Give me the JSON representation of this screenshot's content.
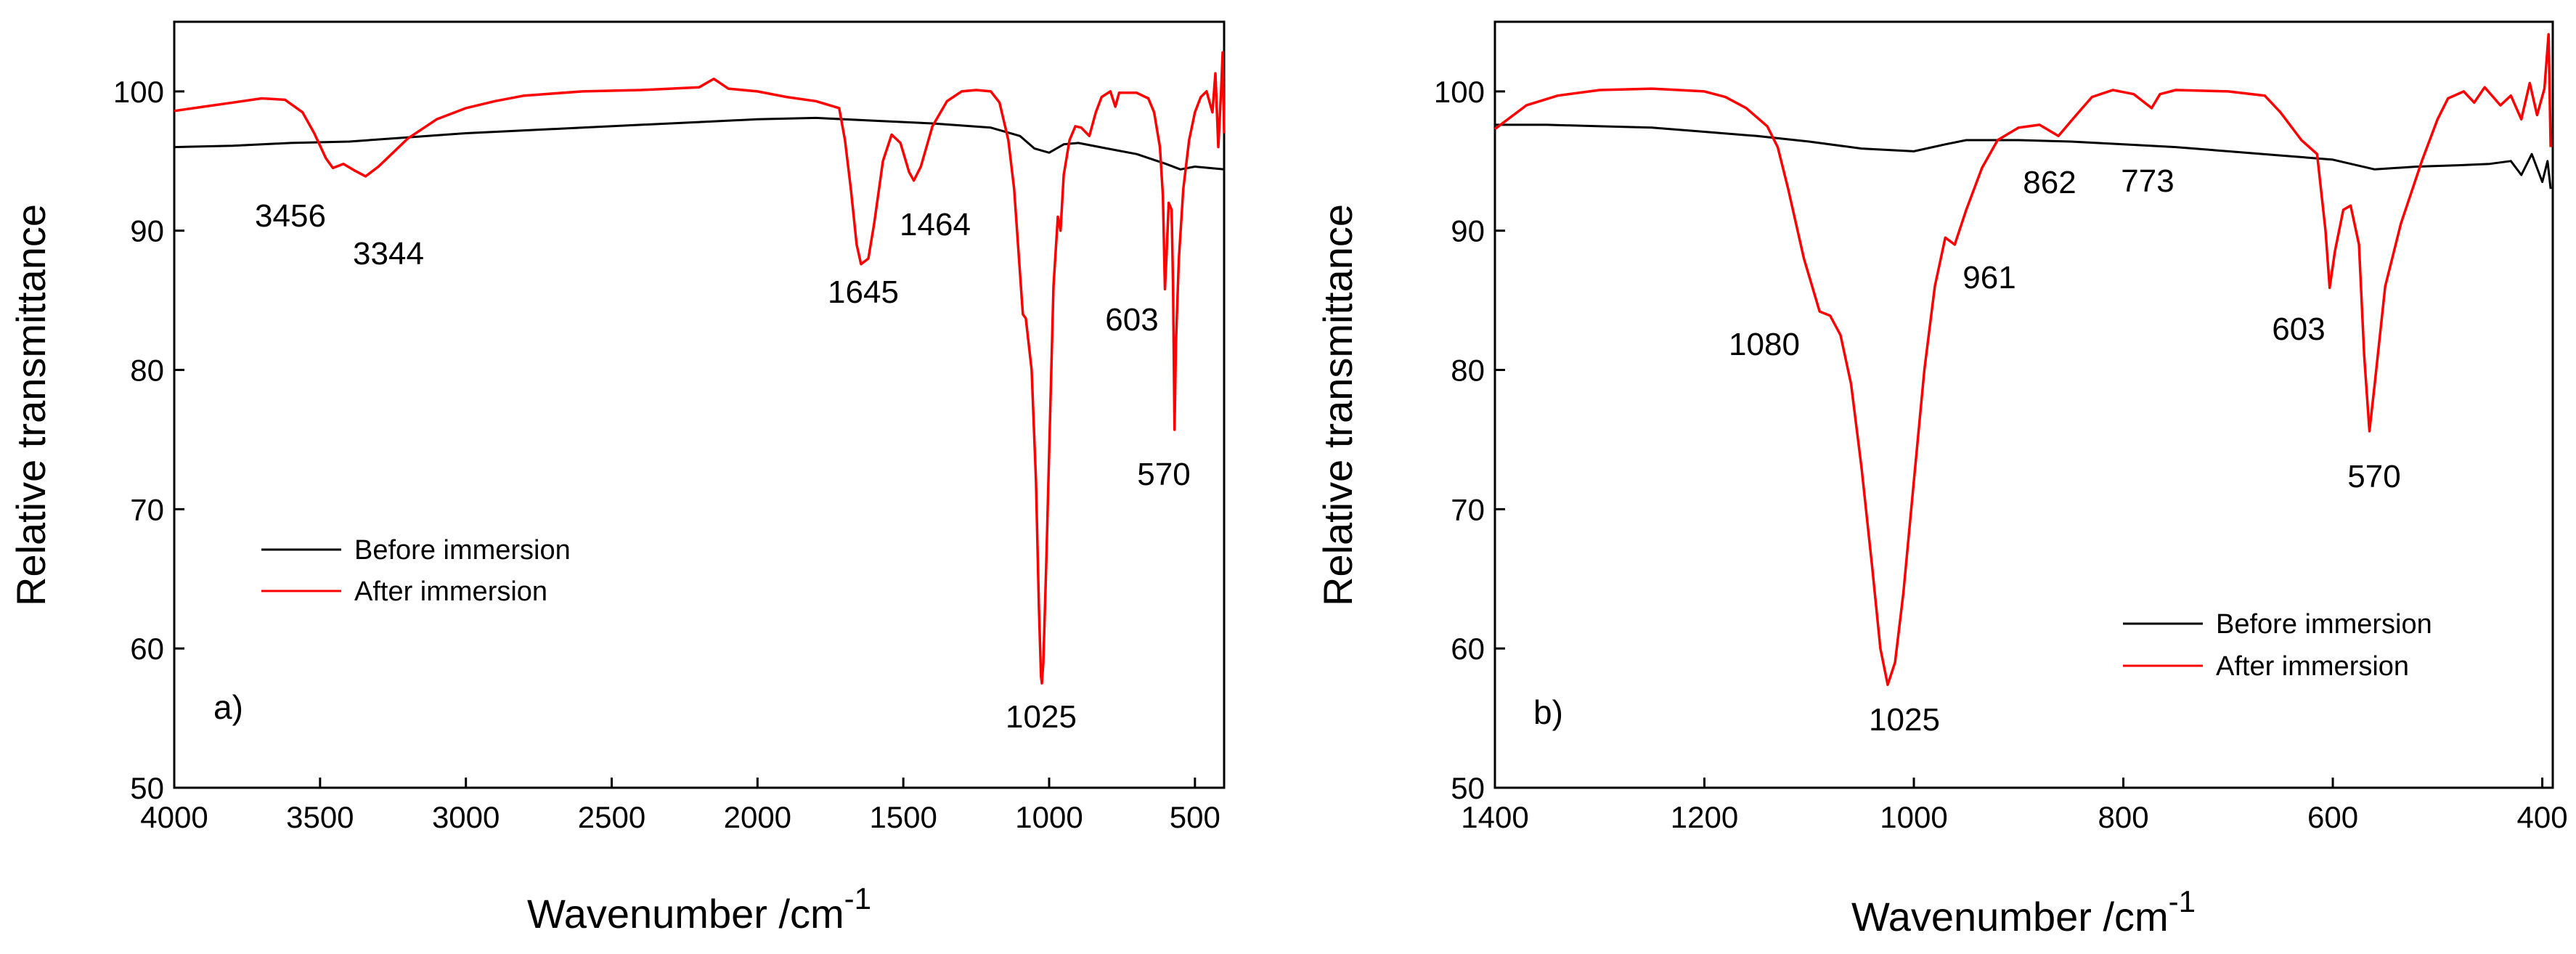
{
  "chart_data": [
    {
      "type": "line",
      "panel_label": "a)",
      "xlabel": "Wavenumber /cm",
      "xlabel_sup": "-1",
      "ylabel": "Relative transmittance",
      "xlim": [
        4000,
        400
      ],
      "ylim": [
        50,
        105
      ],
      "xticks": [
        4000,
        3500,
        3000,
        2500,
        2000,
        1500,
        1000,
        500
      ],
      "yticks": [
        50,
        60,
        70,
        80,
        90,
        100
      ],
      "legend_position": "lower-left",
      "series": [
        {
          "name": "Before immersion",
          "color": "#000000",
          "points": [
            [
              4000,
              96
            ],
            [
              3800,
              96.1
            ],
            [
              3600,
              96.3
            ],
            [
              3400,
              96.4
            ],
            [
              3200,
              96.7
            ],
            [
              3000,
              97
            ],
            [
              2800,
              97.2
            ],
            [
              2600,
              97.4
            ],
            [
              2400,
              97.6
            ],
            [
              2200,
              97.8
            ],
            [
              2000,
              98
            ],
            [
              1800,
              98.1
            ],
            [
              1600,
              97.9
            ],
            [
              1400,
              97.7
            ],
            [
              1200,
              97.4
            ],
            [
              1100,
              96.8
            ],
            [
              1050,
              95.9
            ],
            [
              1000,
              95.6
            ],
            [
              950,
              96.2
            ],
            [
              900,
              96.3
            ],
            [
              800,
              95.9
            ],
            [
              700,
              95.5
            ],
            [
              600,
              94.8
            ],
            [
              550,
              94.4
            ],
            [
              500,
              94.6
            ],
            [
              450,
              94.5
            ],
            [
              400,
              94.4
            ]
          ]
        },
        {
          "name": "After immersion",
          "color": "#ff0000",
          "points": [
            [
              4000,
              98.6
            ],
            [
              3900,
              98.9
            ],
            [
              3800,
              99.2
            ],
            [
              3700,
              99.5
            ],
            [
              3620,
              99.4
            ],
            [
              3560,
              98.5
            ],
            [
              3520,
              97
            ],
            [
              3480,
              95.2
            ],
            [
              3456,
              94.5
            ],
            [
              3420,
              94.8
            ],
            [
              3380,
              94.3
            ],
            [
              3344,
              93.9
            ],
            [
              3300,
              94.6
            ],
            [
              3250,
              95.6
            ],
            [
              3200,
              96.6
            ],
            [
              3100,
              98
            ],
            [
              3000,
              98.8
            ],
            [
              2900,
              99.3
            ],
            [
              2800,
              99.7
            ],
            [
              2600,
              100
            ],
            [
              2400,
              100.1
            ],
            [
              2200,
              100.3
            ],
            [
              2150,
              100.9
            ],
            [
              2100,
              100.2
            ],
            [
              2000,
              100
            ],
            [
              1900,
              99.6
            ],
            [
              1800,
              99.3
            ],
            [
              1720,
              98.8
            ],
            [
              1700,
              96.5
            ],
            [
              1680,
              93
            ],
            [
              1660,
              89
            ],
            [
              1645,
              87.6
            ],
            [
              1620,
              88
            ],
            [
              1600,
              90.5
            ],
            [
              1570,
              95
            ],
            [
              1540,
              96.9
            ],
            [
              1510,
              96.3
            ],
            [
              1480,
              94.2
            ],
            [
              1464,
              93.6
            ],
            [
              1440,
              94.6
            ],
            [
              1400,
              97.5
            ],
            [
              1350,
              99.3
            ],
            [
              1300,
              100
            ],
            [
              1250,
              100.1
            ],
            [
              1200,
              100
            ],
            [
              1170,
              99.2
            ],
            [
              1140,
              96.5
            ],
            [
              1120,
              93
            ],
            [
              1105,
              88.5
            ],
            [
              1090,
              84
            ],
            [
              1080,
              83.7
            ],
            [
              1060,
              80
            ],
            [
              1045,
              72
            ],
            [
              1035,
              63
            ],
            [
              1028,
              58
            ],
            [
              1025,
              57.5
            ],
            [
              1020,
              59
            ],
            [
              1010,
              66
            ],
            [
              995,
              78
            ],
            [
              985,
              86
            ],
            [
              970,
              91
            ],
            [
              961,
              90
            ],
            [
              950,
              94
            ],
            [
              930,
              96.5
            ],
            [
              910,
              97.5
            ],
            [
              890,
              97.4
            ],
            [
              862,
              96.8
            ],
            [
              840,
              98.5
            ],
            [
              820,
              99.6
            ],
            [
              790,
              100
            ],
            [
              773,
              98.9
            ],
            [
              760,
              99.9
            ],
            [
              700,
              99.9
            ],
            [
              660,
              99.5
            ],
            [
              640,
              98.5
            ],
            [
              620,
              96
            ],
            [
              610,
              92.5
            ],
            [
              603,
              85.8
            ],
            [
              598,
              88
            ],
            [
              590,
              92
            ],
            [
              580,
              91.5
            ],
            [
              575,
              86
            ],
            [
              570,
              75.7
            ],
            [
              565,
              82
            ],
            [
              555,
              88
            ],
            [
              540,
              93
            ],
            [
              520,
              96.5
            ],
            [
              500,
              98.5
            ],
            [
              480,
              99.6
            ],
            [
              460,
              100
            ],
            [
              440,
              98.5
            ],
            [
              430,
              101.3
            ],
            [
              420,
              96
            ],
            [
              410,
              100.2
            ],
            [
              405,
              102.8
            ],
            [
              400,
              97
            ]
          ]
        }
      ],
      "annotations": [
        {
          "text": "3456",
          "x": 3456
        },
        {
          "text": "3344",
          "x": 3344
        },
        {
          "text": "1645",
          "x": 1645
        },
        {
          "text": "1464",
          "x": 1464
        },
        {
          "text": "1025",
          "x": 1025
        },
        {
          "text": "603",
          "x": 603
        },
        {
          "text": "570",
          "x": 570
        }
      ]
    },
    {
      "type": "line",
      "panel_label": "b)",
      "xlabel": "Wavenumber /cm",
      "xlabel_sup": "-1",
      "ylabel": "Relative transmittance",
      "xlim": [
        1400,
        390
      ],
      "ylim": [
        50,
        105
      ],
      "xticks": [
        1400,
        1200,
        1000,
        800,
        600,
        400
      ],
      "yticks": [
        50,
        60,
        70,
        80,
        90,
        100
      ],
      "legend_position": "lower-right",
      "series": [
        {
          "name": "Before immersion",
          "color": "#000000",
          "points": [
            [
              1400,
              97.6
            ],
            [
              1350,
              97.6
            ],
            [
              1300,
              97.5
            ],
            [
              1250,
              97.4
            ],
            [
              1200,
              97.1
            ],
            [
              1150,
              96.8
            ],
            [
              1100,
              96.4
            ],
            [
              1050,
              95.9
            ],
            [
              1000,
              95.7
            ],
            [
              970,
              96.2
            ],
            [
              950,
              96.5
            ],
            [
              900,
              96.5
            ],
            [
              850,
              96.4
            ],
            [
              800,
              96.2
            ],
            [
              750,
              96
            ],
            [
              700,
              95.7
            ],
            [
              650,
              95.4
            ],
            [
              600,
              95.1
            ],
            [
              560,
              94.4
            ],
            [
              520,
              94.6
            ],
            [
              480,
              94.7
            ],
            [
              450,
              94.8
            ],
            [
              430,
              95
            ],
            [
              420,
              94
            ],
            [
              410,
              95.5
            ],
            [
              400,
              93.5
            ],
            [
              395,
              95
            ],
            [
              392,
              93
            ]
          ]
        },
        {
          "name": "After immersion",
          "color": "#ff0000",
          "points": [
            [
              1400,
              97.3
            ],
            [
              1370,
              99
            ],
            [
              1340,
              99.7
            ],
            [
              1300,
              100.1
            ],
            [
              1250,
              100.2
            ],
            [
              1200,
              100
            ],
            [
              1180,
              99.6
            ],
            [
              1160,
              98.8
            ],
            [
              1140,
              97.5
            ],
            [
              1130,
              96
            ],
            [
              1120,
              93
            ],
            [
              1105,
              88
            ],
            [
              1090,
              84.2
            ],
            [
              1080,
              83.9
            ],
            [
              1070,
              82.5
            ],
            [
              1060,
              79
            ],
            [
              1050,
              73
            ],
            [
              1040,
              66
            ],
            [
              1032,
              60
            ],
            [
              1025,
              57.4
            ],
            [
              1018,
              59
            ],
            [
              1010,
              64
            ],
            [
              1000,
              72
            ],
            [
              990,
              80
            ],
            [
              980,
              86
            ],
            [
              970,
              89.5
            ],
            [
              961,
              89
            ],
            [
              950,
              91.5
            ],
            [
              935,
              94.5
            ],
            [
              920,
              96.5
            ],
            [
              900,
              97.4
            ],
            [
              880,
              97.6
            ],
            [
              862,
              96.8
            ],
            [
              845,
              98.3
            ],
            [
              830,
              99.6
            ],
            [
              810,
              100.1
            ],
            [
              790,
              99.8
            ],
            [
              773,
              98.8
            ],
            [
              765,
              99.8
            ],
            [
              750,
              100.1
            ],
            [
              700,
              100
            ],
            [
              665,
              99.7
            ],
            [
              650,
              98.5
            ],
            [
              630,
              96.5
            ],
            [
              615,
              95.5
            ],
            [
              607,
              90
            ],
            [
              603,
              85.9
            ],
            [
              598,
              88.5
            ],
            [
              590,
              91.5
            ],
            [
              583,
              91.8
            ],
            [
              575,
              89
            ],
            [
              570,
              81
            ],
            [
              565,
              75.6
            ],
            [
              560,
              79
            ],
            [
              550,
              86
            ],
            [
              535,
              90.5
            ],
            [
              515,
              95
            ],
            [
              500,
              98
            ],
            [
              490,
              99.5
            ],
            [
              475,
              100
            ],
            [
              465,
              99.2
            ],
            [
              455,
              100.3
            ],
            [
              440,
              99
            ],
            [
              430,
              99.7
            ],
            [
              420,
              98
            ],
            [
              412,
              100.6
            ],
            [
              405,
              98.3
            ],
            [
              398,
              100.2
            ],
            [
              394,
              104.1
            ],
            [
              392,
              96
            ]
          ]
        }
      ],
      "annotations": [
        {
          "text": "1080",
          "x": 1080
        },
        {
          "text": "1025",
          "x": 1025
        },
        {
          "text": "961",
          "x": 961
        },
        {
          "text": "862",
          "x": 862
        },
        {
          "text": "773",
          "x": 773
        },
        {
          "text": "603",
          "x": 603
        },
        {
          "text": "570",
          "x": 570
        }
      ]
    }
  ]
}
